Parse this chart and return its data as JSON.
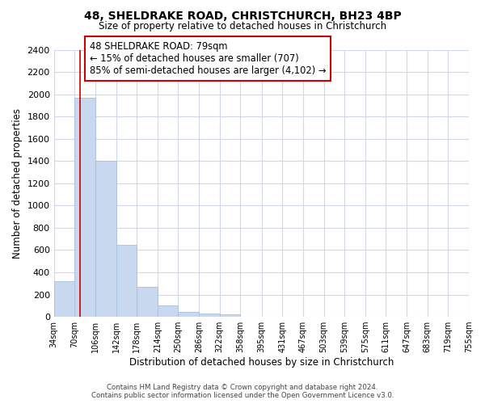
{
  "title": "48, SHELDRAKE ROAD, CHRISTCHURCH, BH23 4BP",
  "subtitle": "Size of property relative to detached houses in Christchurch",
  "xlabel": "Distribution of detached houses by size in Christchurch",
  "ylabel": "Number of detached properties",
  "bar_edges": [
    34,
    70,
    106,
    142,
    178,
    214,
    250,
    286,
    322,
    358,
    395,
    431,
    467,
    503,
    539,
    575,
    611,
    647,
    683,
    719,
    755
  ],
  "bar_heights": [
    320,
    1970,
    1400,
    650,
    270,
    100,
    45,
    30,
    20,
    0,
    0,
    0,
    0,
    0,
    0,
    0,
    0,
    0,
    0,
    0
  ],
  "bar_color": "#c8d8ef",
  "bar_edge_color": "#a8c0e0",
  "property_line_x": 79,
  "property_line_color": "#cc0000",
  "annotation_line1": "48 SHELDRAKE ROAD: 79sqm",
  "annotation_line2": "← 15% of detached houses are smaller (707)",
  "annotation_line3": "85% of semi-detached houses are larger (4,102) →",
  "annotation_box_color": "#ffffff",
  "annotation_box_edge": "#cc0000",
  "ylim": [
    0,
    2400
  ],
  "yticks": [
    0,
    200,
    400,
    600,
    800,
    1000,
    1200,
    1400,
    1600,
    1800,
    2000,
    2200,
    2400
  ],
  "tick_labels": [
    "34sqm",
    "70sqm",
    "106sqm",
    "142sqm",
    "178sqm",
    "214sqm",
    "250sqm",
    "286sqm",
    "322sqm",
    "358sqm",
    "395sqm",
    "431sqm",
    "467sqm",
    "503sqm",
    "539sqm",
    "575sqm",
    "611sqm",
    "647sqm",
    "683sqm",
    "719sqm",
    "755sqm"
  ],
  "footer_line1": "Contains HM Land Registry data © Crown copyright and database right 2024.",
  "footer_line2": "Contains public sector information licensed under the Open Government Licence v3.0.",
  "bg_color": "#ffffff",
  "grid_color": "#d0d8e8"
}
